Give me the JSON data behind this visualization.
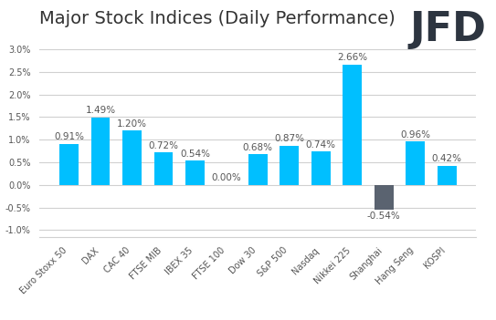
{
  "categories": [
    "Euro Stoxx 50",
    "DAX",
    "CAC 40",
    "FTSE MIB",
    "IBEX 35",
    "FTSE 100",
    "Dow 30",
    "S&P 500",
    "Nasdaq",
    "Nikkei 225",
    "Shanghai",
    "Hang Seng",
    "KOSPI"
  ],
  "values": [
    0.91,
    1.49,
    1.2,
    0.72,
    0.54,
    0.0,
    0.68,
    0.87,
    0.74,
    2.66,
    -0.54,
    0.96,
    0.42
  ],
  "bar_color_positive": "#00BFFF",
  "bar_color_negative": "#5a6370",
  "title": "Major Stock Indices (Daily Performance)",
  "title_fontsize": 14,
  "label_fontsize": 7.5,
  "tick_fontsize": 7,
  "ylim": [
    -1.15,
    3.1
  ],
  "yticks": [
    -1.0,
    -0.5,
    0.0,
    0.5,
    1.0,
    1.5,
    2.0,
    2.5,
    3.0
  ],
  "background_color": "#ffffff",
  "grid_color": "#d0d0d0",
  "jfd_text": "JFD",
  "jfd_fontsize": 32,
  "jfd_color": "#2d3540"
}
